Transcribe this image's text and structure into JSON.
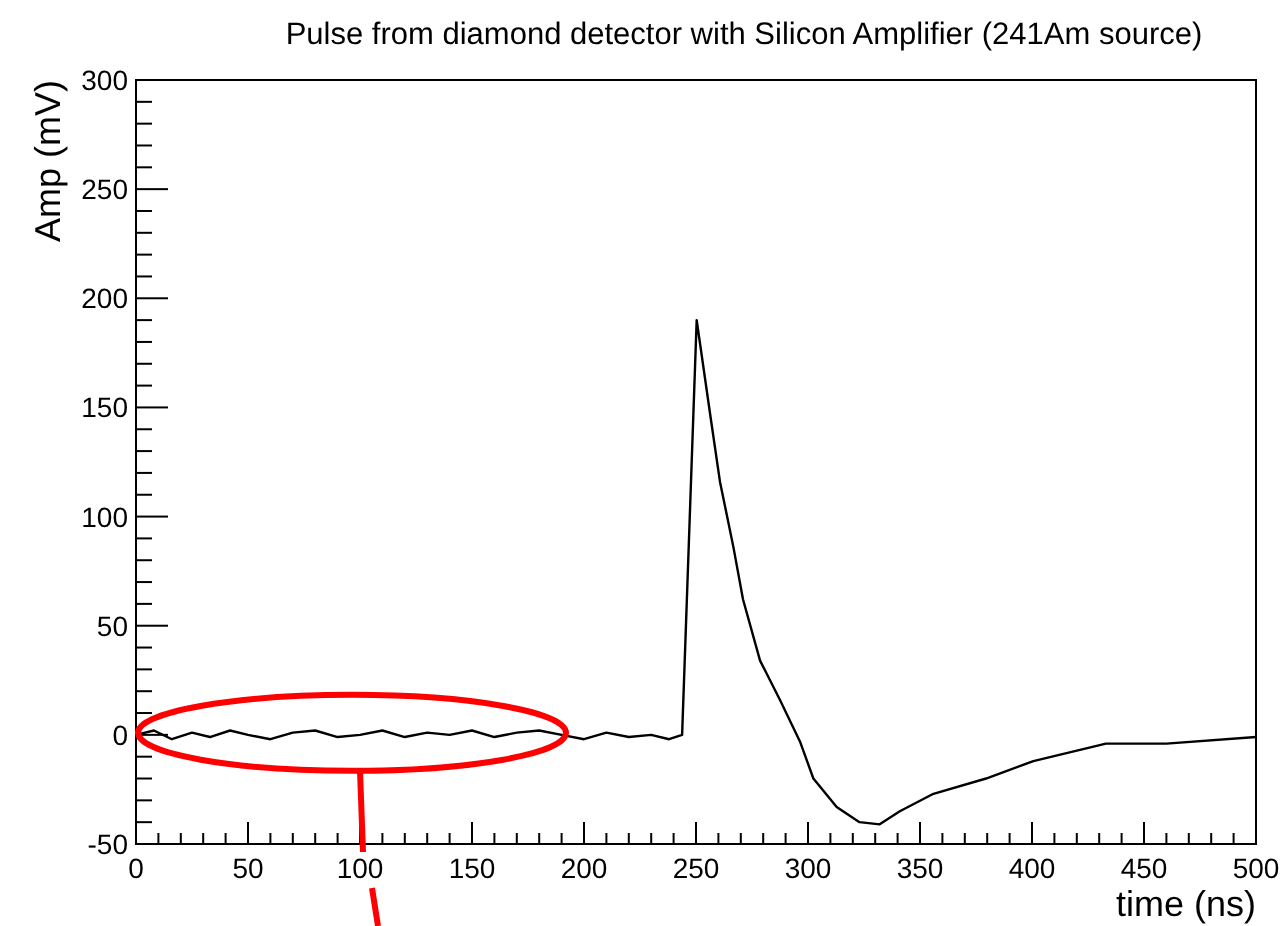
{
  "chart_data": {
    "type": "line",
    "title": "Pulse from diamond detector with Silicon Amplifier (241Am source)",
    "xlabel": "time (ns)",
    "ylabel": "Amp (mV)",
    "x": [
      0,
      8,
      16,
      25,
      33,
      42,
      50,
      60,
      70,
      80,
      90,
      100,
      110,
      120,
      130,
      140,
      150,
      160,
      170,
      180,
      190,
      200,
      210,
      220,
      230,
      238,
      243.8,
      250.3,
      256.3,
      260.7,
      266.7,
      271,
      278.6,
      287.5,
      296.4,
      302.4,
      312.8,
      323,
      332,
      341,
      356,
      379.5,
      400.6,
      433,
      460,
      500
    ],
    "series": [
      {
        "color": "#000000",
        "values": [
          0,
          2,
          -2,
          1,
          -1,
          2,
          0,
          -2,
          1,
          2,
          -1,
          0,
          2,
          -1,
          1,
          0,
          2,
          -1,
          1,
          2,
          0,
          -2,
          1,
          -1,
          0,
          -2,
          0,
          190,
          147,
          116,
          86,
          62,
          34,
          16,
          -3,
          -20,
          -33,
          -40,
          -41,
          -35,
          -27,
          -20,
          -12,
          -4,
          -4,
          -1
        ]
      }
    ],
    "xlim": [
      0,
      500
    ],
    "ylim": [
      -50,
      300
    ],
    "xticks": [
      0,
      50,
      100,
      150,
      200,
      250,
      300,
      350,
      400,
      450,
      500
    ],
    "yticks": [
      -50,
      0,
      50,
      100,
      150,
      200,
      250,
      300
    ],
    "grid": false,
    "marker": "none",
    "line_style": "solid"
  }
}
